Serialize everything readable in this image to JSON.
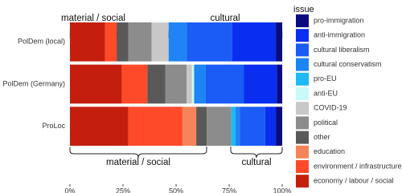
{
  "chart_data": {
    "type": "stacked-bar-horizontal",
    "categories": [
      "PolDem (local)",
      "PolDem (Germany)",
      "ProLoc"
    ],
    "legend_title": "issue",
    "series": [
      {
        "name": "pro-immigration",
        "color": "#0b0b80",
        "values": [
          3,
          2.5,
          3
        ]
      },
      {
        "name": "anti-immigration",
        "color": "#0a2ef0",
        "values": [
          20.5,
          15.5,
          5
        ]
      },
      {
        "name": "cultural liberalism",
        "color": "#1a5cf5",
        "values": [
          21.5,
          18,
          12
        ]
      },
      {
        "name": "cultural conservatism",
        "color": "#1f84f5",
        "values": [
          8.5,
          5.5,
          2
        ]
      },
      {
        "name": "pro-EU",
        "color": "#20b8f5",
        "values": [
          0,
          0,
          2
        ]
      },
      {
        "name": "anti-EU",
        "color": "#c8fafa",
        "values": [
          0,
          1,
          0
        ]
      },
      {
        "name": "COVID-19",
        "color": "#c8c8c8",
        "values": [
          8,
          2.5,
          0
        ]
      },
      {
        "name": "political",
        "color": "#8c8c8c",
        "values": [
          11,
          10,
          11.5
        ]
      },
      {
        "name": "other",
        "color": "#595959",
        "values": [
          5.5,
          8.5,
          5
        ]
      },
      {
        "name": "education",
        "color": "#f5845a",
        "values": [
          0,
          0,
          6.5
        ]
      },
      {
        "name": "environment / infrastructure",
        "color": "#ff4a2a",
        "values": [
          5.5,
          12,
          25.5
        ]
      },
      {
        "name": "economy / labour / social",
        "color": "#c41f0e",
        "values": [
          16.5,
          24.5,
          27.5
        ]
      }
    ],
    "xlim": [
      0,
      100
    ],
    "xticks": [
      {
        "value": 0,
        "label": "0%"
      },
      {
        "value": 25,
        "label": "25%"
      },
      {
        "value": 50,
        "label": "50%"
      },
      {
        "value": 75,
        "label": "75%"
      },
      {
        "value": 100,
        "label": "100%"
      }
    ],
    "grid": true,
    "annotations": [
      "material / social",
      "cultural",
      "material / social",
      "cultural"
    ]
  }
}
